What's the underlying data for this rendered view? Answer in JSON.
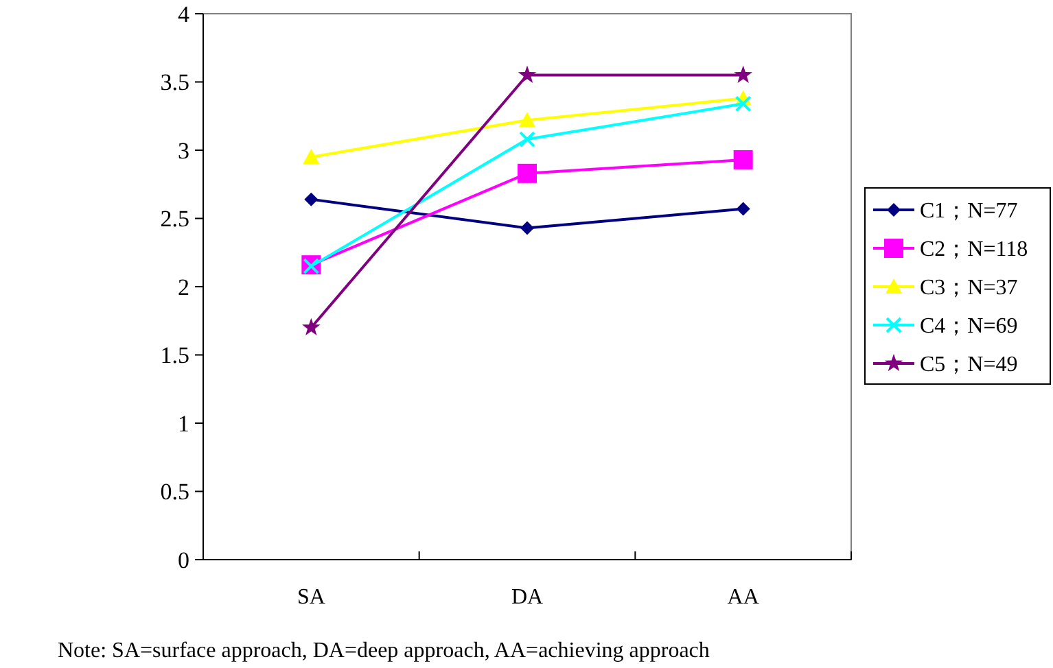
{
  "chart_data": {
    "type": "line",
    "categories": [
      "SA",
      "DA",
      "AA"
    ],
    "ylim": [
      0,
      4
    ],
    "yticks": [
      0,
      0.5,
      1,
      1.5,
      2,
      2.5,
      3,
      3.5,
      4
    ],
    "grid": false,
    "legend": "right",
    "series": [
      {
        "name": "C1；N=77",
        "color": "#000080",
        "marker": "diamond",
        "values": [
          2.64,
          2.43,
          2.57
        ]
      },
      {
        "name": "C2；N=118",
        "color": "#ff00ff",
        "marker": "square",
        "values": [
          2.16,
          2.83,
          2.93
        ]
      },
      {
        "name": "C3；N=37",
        "color": "#ffff00",
        "marker": "triangle",
        "values": [
          2.95,
          3.22,
          3.38
        ]
      },
      {
        "name": "C4；N=69",
        "color": "#00ffff",
        "marker": "cross",
        "values": [
          2.15,
          3.08,
          3.34
        ]
      },
      {
        "name": "C5；N=49",
        "color": "#800080",
        "marker": "star",
        "values": [
          1.7,
          3.55,
          3.55
        ]
      }
    ],
    "annotations": [
      "Note: SA=surface approach, DA=deep approach, AA=achieving approach"
    ]
  }
}
